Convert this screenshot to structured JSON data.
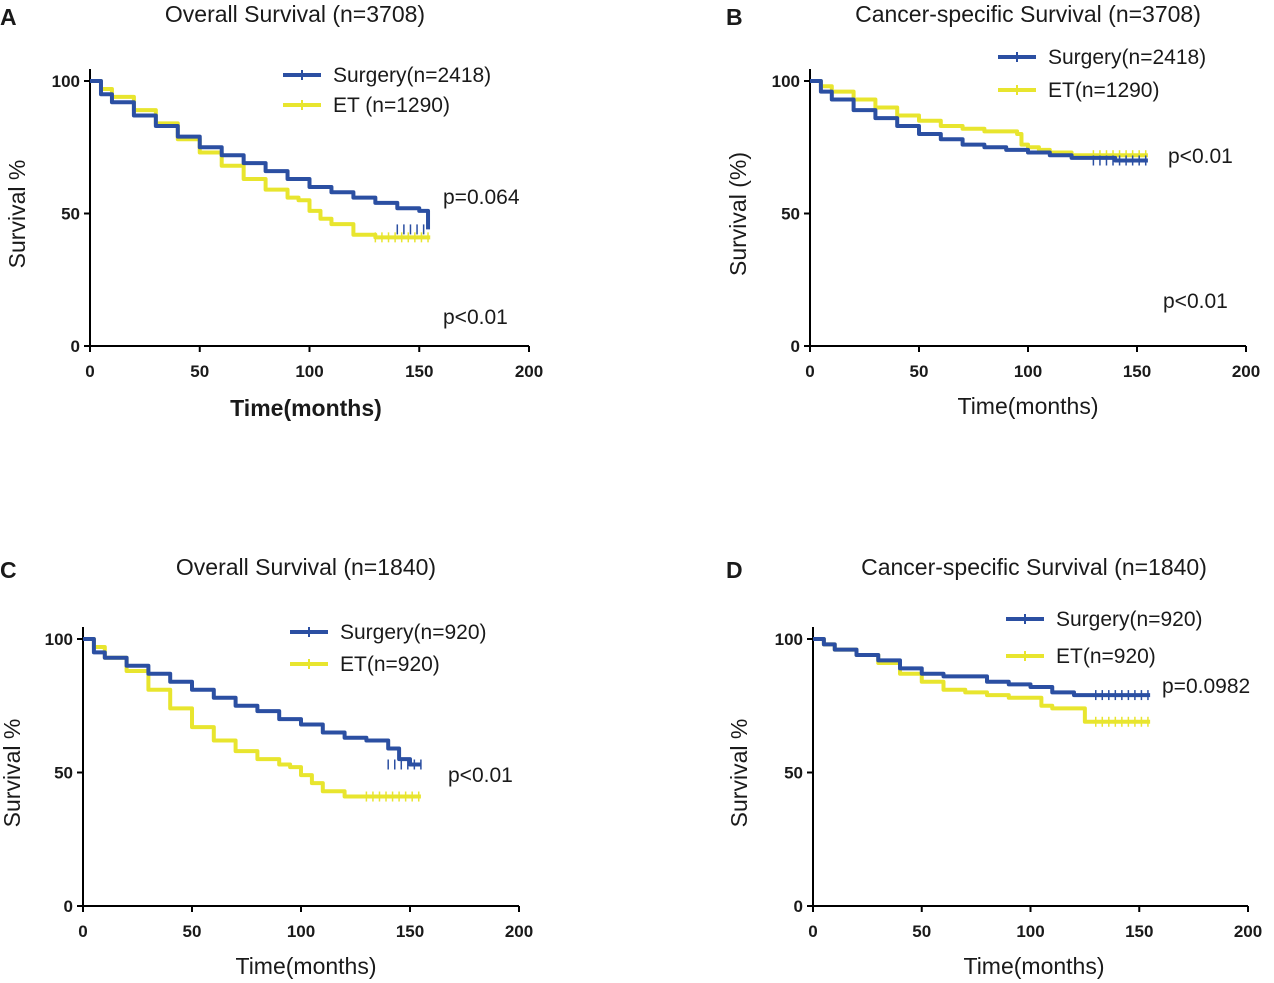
{
  "colors": {
    "surgery": "#2b4fa2",
    "et": "#e8e52e",
    "axis": "#000000",
    "text": "#1a1a1a"
  },
  "chart_data": [
    {
      "type": "line",
      "panel": "A",
      "title": "Overall Survival (n=3708)",
      "xlabel": "Time(months)",
      "ylabel": "Survival %",
      "xlim": [
        0,
        200
      ],
      "ylim": [
        0,
        100
      ],
      "xticks": [
        0,
        50,
        100,
        150,
        200
      ],
      "yticks": [
        0,
        50,
        100
      ],
      "legend_position": "top-right",
      "annotations": [
        "p=0.064",
        "p<0.01"
      ],
      "series": [
        {
          "name": "Surgery(n=2418)",
          "color": "#2b4fa2",
          "x": [
            0,
            5,
            10,
            20,
            30,
            40,
            50,
            60,
            70,
            80,
            90,
            100,
            110,
            120,
            130,
            140,
            150,
            154,
            154
          ],
          "y": [
            100,
            95,
            92,
            87,
            83,
            79,
            75,
            72,
            69,
            66,
            63,
            60,
            58,
            56,
            54,
            52,
            51,
            50,
            44
          ]
        },
        {
          "name": "ET (n=1290)",
          "color": "#e8e52e",
          "x": [
            0,
            5,
            10,
            20,
            30,
            40,
            50,
            60,
            70,
            80,
            90,
            95,
            100,
            105,
            110,
            120,
            130,
            140,
            150,
            155
          ],
          "y": [
            100,
            97,
            94,
            89,
            84,
            78,
            73,
            68,
            63,
            59,
            56,
            55,
            51,
            48,
            46,
            42,
            41,
            41,
            41,
            41
          ]
        }
      ]
    },
    {
      "type": "line",
      "panel": "B",
      "title": "Cancer-specific Survival (n=3708)",
      "xlabel": "Time(months)",
      "ylabel": "Survival (%)",
      "xlim": [
        0,
        200
      ],
      "ylim": [
        0,
        100
      ],
      "xticks": [
        0,
        50,
        100,
        150,
        200
      ],
      "yticks": [
        0,
        50,
        100
      ],
      "legend_position": "top-right",
      "annotations": [
        "p<0.01",
        "p<0.01"
      ],
      "series": [
        {
          "name": "Surgery(n=2418)",
          "color": "#2b4fa2",
          "x": [
            0,
            5,
            10,
            20,
            30,
            40,
            50,
            60,
            70,
            80,
            90,
            100,
            110,
            120,
            130,
            140,
            150,
            155
          ],
          "y": [
            100,
            96,
            93,
            89,
            86,
            83,
            80,
            78,
            76,
            75,
            74,
            73,
            72,
            71,
            71,
            70,
            70,
            70
          ]
        },
        {
          "name": "ET(n=1290)",
          "color": "#e8e52e",
          "x": [
            0,
            5,
            10,
            20,
            30,
            40,
            50,
            60,
            70,
            80,
            90,
            95,
            97,
            100,
            105,
            110,
            120,
            130,
            140,
            150,
            155
          ],
          "y": [
            100,
            98,
            96,
            93,
            90,
            87,
            85,
            83,
            82,
            81,
            81,
            80,
            76,
            75,
            74,
            73,
            72,
            72,
            72,
            72,
            72
          ]
        }
      ]
    },
    {
      "type": "line",
      "panel": "C",
      "title": "Overall Survival (n=1840)",
      "xlabel": "Time(months)",
      "ylabel": "Survival %",
      "xlim": [
        0,
        200
      ],
      "ylim": [
        0,
        100
      ],
      "xticks": [
        0,
        50,
        100,
        150,
        200
      ],
      "yticks": [
        0,
        50,
        100
      ],
      "legend_position": "top-right",
      "annotations": [
        "p<0.01"
      ],
      "series": [
        {
          "name": "Surgery(n=920)",
          "color": "#2b4fa2",
          "x": [
            0,
            5,
            10,
            20,
            30,
            40,
            50,
            60,
            70,
            80,
            90,
            100,
            110,
            120,
            130,
            140,
            145,
            150,
            155
          ],
          "y": [
            100,
            95,
            93,
            90,
            87,
            84,
            81,
            78,
            75,
            73,
            70,
            68,
            65,
            63,
            62,
            59,
            55,
            53,
            53
          ]
        },
        {
          "name": "ET(n=920)",
          "color": "#e8e52e",
          "x": [
            0,
            5,
            10,
            20,
            30,
            40,
            50,
            60,
            70,
            80,
            90,
            95,
            100,
            105,
            110,
            120,
            130,
            140,
            150,
            155
          ],
          "y": [
            100,
            97,
            93,
            88,
            81,
            74,
            67,
            62,
            58,
            55,
            53,
            52,
            49,
            46,
            43,
            41,
            41,
            41,
            41,
            41
          ]
        }
      ]
    },
    {
      "type": "line",
      "panel": "D",
      "title": "Cancer-specific Survival (n=1840)",
      "xlabel": "Time(months)",
      "ylabel": "Survival %",
      "xlim": [
        0,
        200
      ],
      "ylim": [
        0,
        100
      ],
      "xticks": [
        0,
        50,
        100,
        150,
        200
      ],
      "yticks": [
        0,
        50,
        100
      ],
      "legend_position": "top-right",
      "annotations": [
        "p=0.0982"
      ],
      "series": [
        {
          "name": "Surgery(n=920)",
          "color": "#2b4fa2",
          "x": [
            0,
            5,
            10,
            20,
            30,
            40,
            50,
            60,
            70,
            80,
            90,
            100,
            110,
            120,
            130,
            140,
            150,
            155
          ],
          "y": [
            100,
            98,
            96,
            94,
            92,
            89,
            87,
            86,
            86,
            84,
            83,
            82,
            80,
            79,
            79,
            79,
            79,
            79
          ]
        },
        {
          "name": "ET(n=920)",
          "color": "#e8e52e",
          "x": [
            0,
            5,
            10,
            20,
            30,
            40,
            50,
            60,
            70,
            80,
            90,
            100,
            105,
            110,
            120,
            125,
            130,
            140,
            150,
            155
          ],
          "y": [
            100,
            98,
            96,
            94,
            91,
            87,
            84,
            81,
            80,
            79,
            78,
            78,
            75,
            74,
            74,
            69,
            69,
            69,
            69,
            69
          ]
        }
      ]
    }
  ]
}
